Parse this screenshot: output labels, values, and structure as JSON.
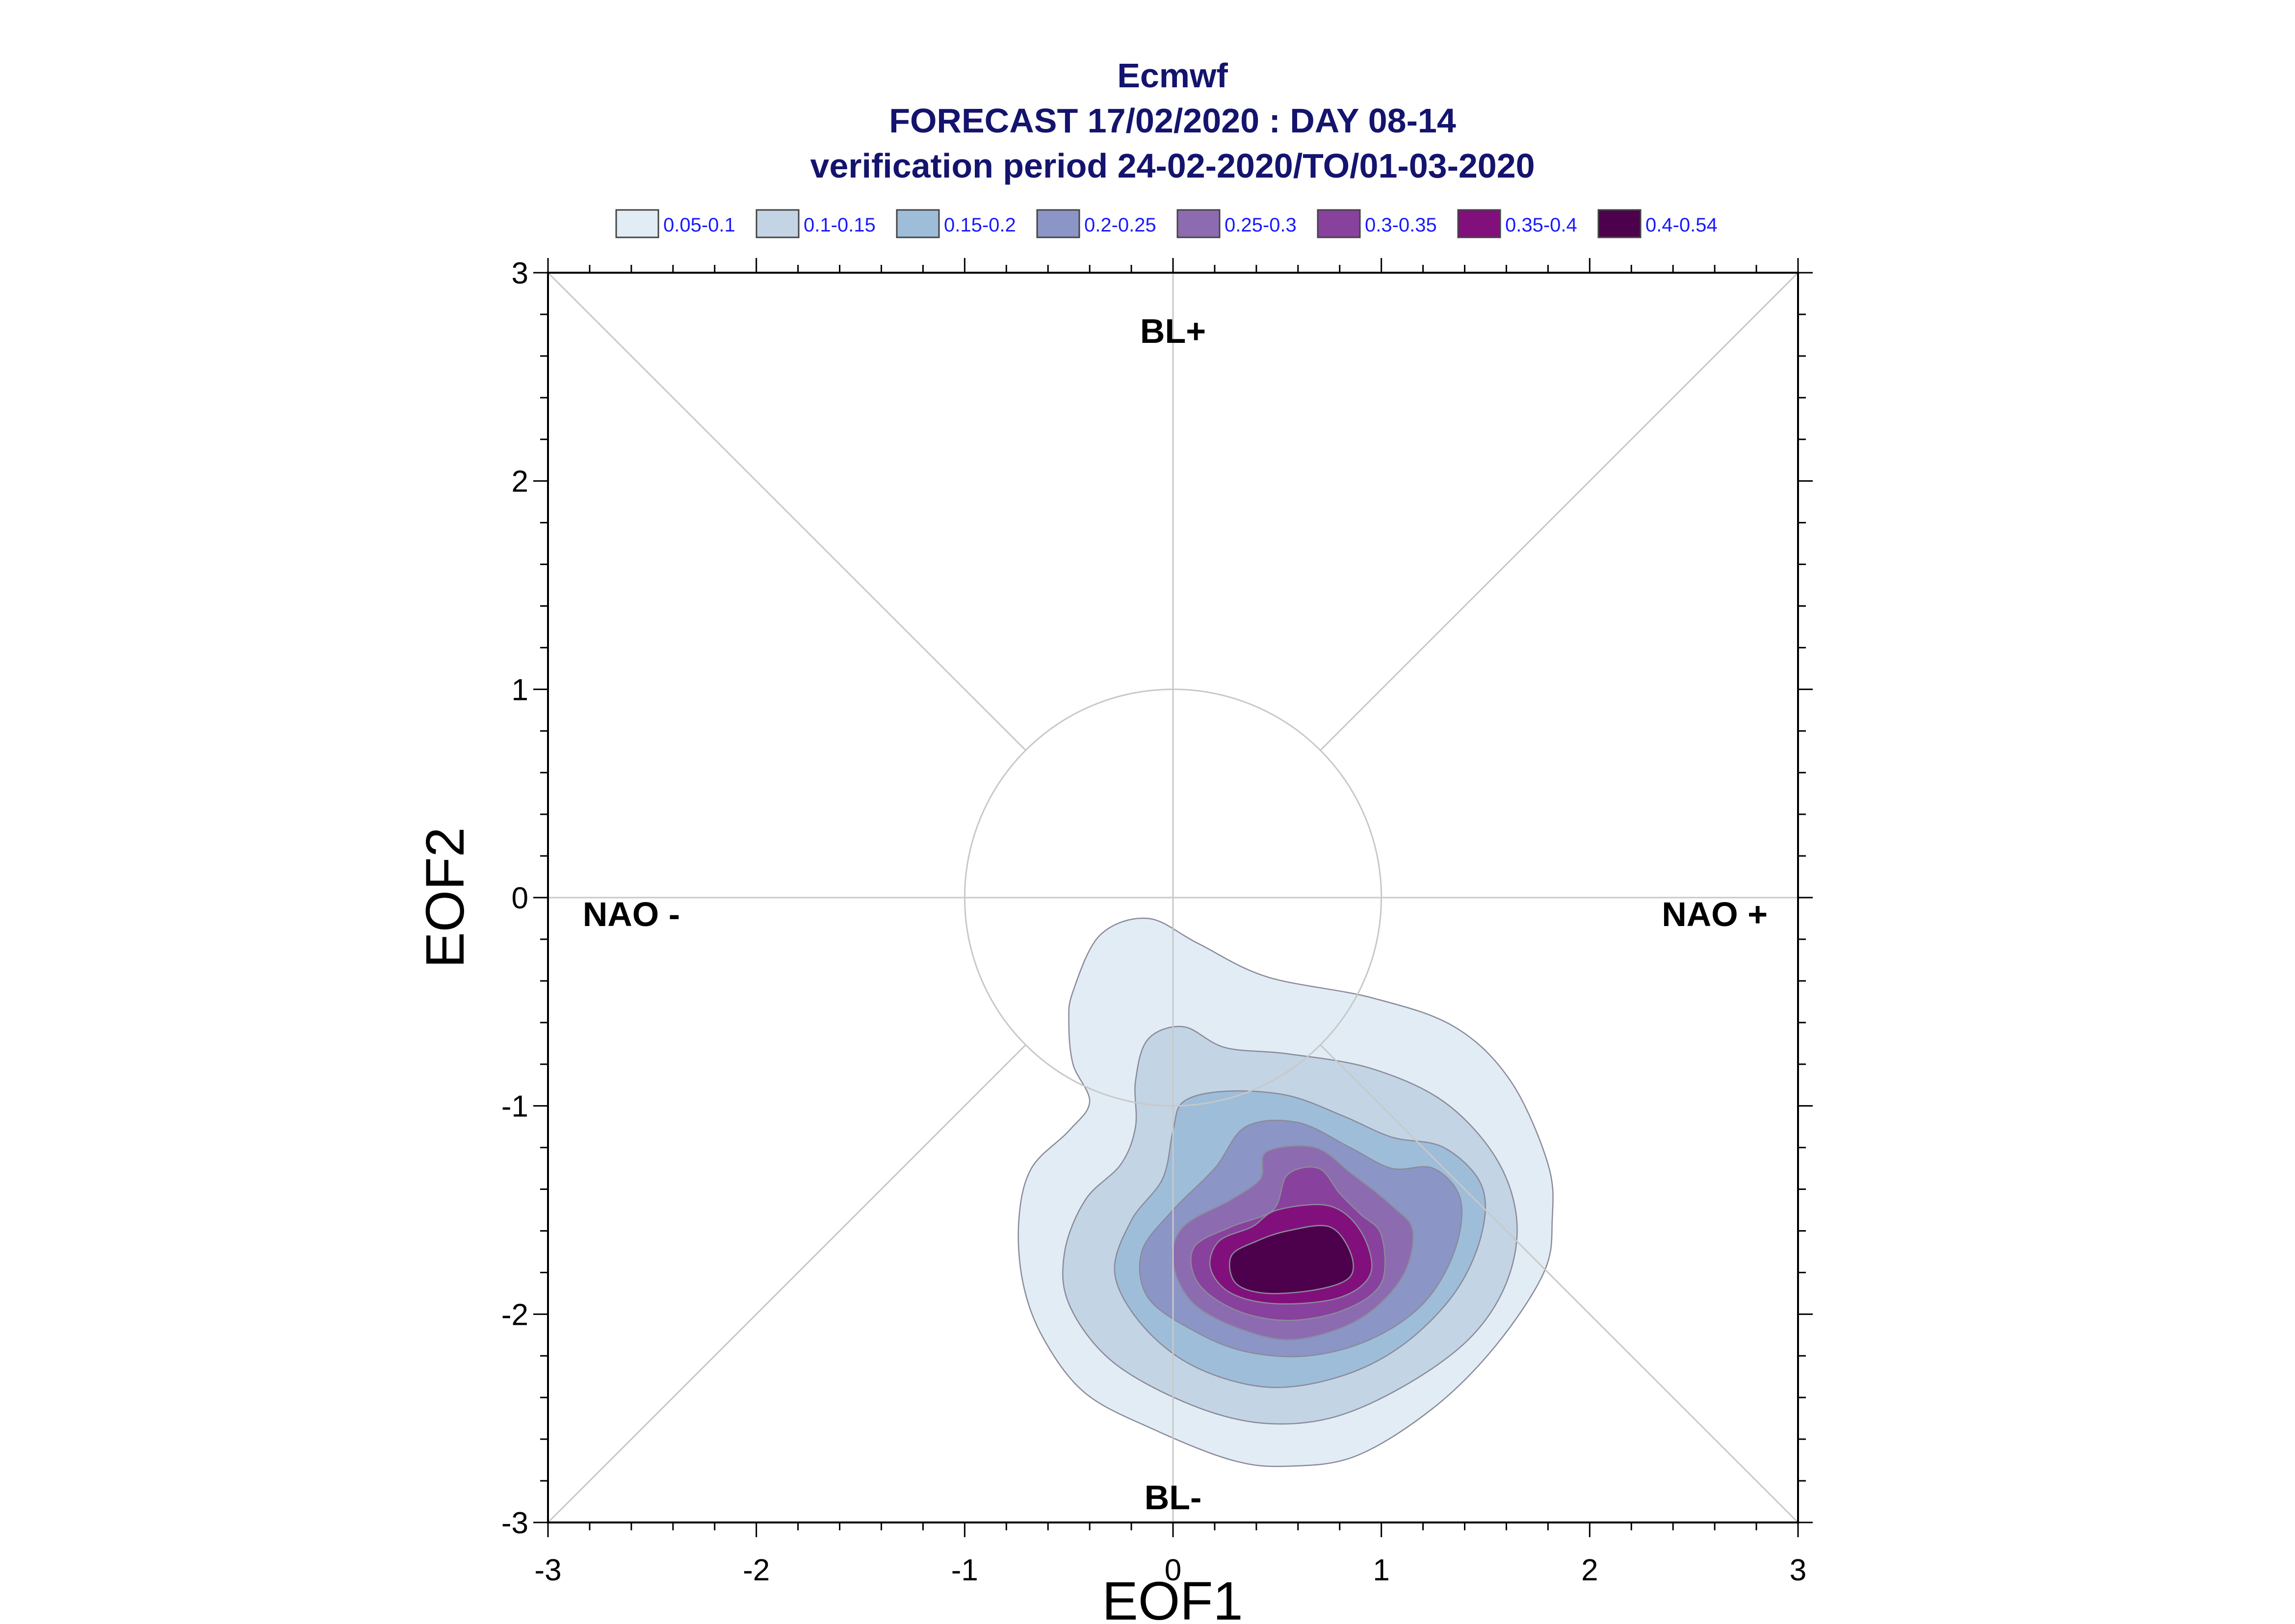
{
  "chart_data": {
    "type": "contour",
    "title": "Ecmwf",
    "subtitle": "FORECAST 17/02/2020 : DAY 08-14",
    "subtitle2": "verification period 24-02-2020/TO/01-03-2020",
    "xlabel": "EOF1",
    "ylabel": "EOF2",
    "xlim": [
      -3,
      3
    ],
    "ylim": [
      -3,
      3
    ],
    "xticks": [
      -3,
      -2,
      -1,
      0,
      1,
      2,
      3
    ],
    "yticks": [
      -3,
      -2,
      -1,
      0,
      1,
      2,
      3
    ],
    "xtick_labels": [
      "-3",
      "-2",
      "-1",
      "0",
      "1",
      "2",
      "3"
    ],
    "ytick_labels": [
      "-3",
      "-2",
      "-1",
      "0",
      "1",
      "2",
      "3"
    ],
    "legend_position": "top",
    "regime_labels": [
      {
        "text": "BL+",
        "x": 0.0,
        "y": 2.72
      },
      {
        "text": "BL-",
        "x": 0.0,
        "y": -2.88
      },
      {
        "text": "NAO -",
        "x": -2.6,
        "y": -0.08
      },
      {
        "text": "NAO +",
        "x": 2.6,
        "y": -0.08
      }
    ],
    "reference_circle_radius": 1.0,
    "levels": [
      {
        "label": "0.05-0.1",
        "color": "#e1ecf4"
      },
      {
        "label": "0.1-0.15",
        "color": "#c3d5e5"
      },
      {
        "label": "0.15-0.2",
        "color": "#9ebdd9"
      },
      {
        "label": "0.2-0.25",
        "color": "#8c96c6"
      },
      {
        "label": "0.25-0.3",
        "color": "#8c6bb1"
      },
      {
        "label": "0.3-0.35",
        "color": "#88419d"
      },
      {
        "label": "0.35-0.4",
        "color": "#810f7c"
      },
      {
        "label": "0.4-0.54",
        "color": "#4d004b"
      }
    ],
    "contours": [
      [
        [
          -0.48,
          -0.45
        ],
        [
          -0.35,
          -0.18
        ],
        [
          -0.12,
          -0.1
        ],
        [
          0.12,
          -0.22
        ],
        [
          0.45,
          -0.38
        ],
        [
          0.95,
          -0.48
        ],
        [
          1.35,
          -0.62
        ],
        [
          1.62,
          -0.88
        ],
        [
          1.8,
          -1.28
        ],
        [
          1.82,
          -1.55
        ],
        [
          1.78,
          -1.8
        ],
        [
          1.55,
          -2.15
        ],
        [
          1.25,
          -2.45
        ],
        [
          0.88,
          -2.68
        ],
        [
          0.55,
          -2.73
        ],
        [
          0.28,
          -2.7
        ],
        [
          -0.1,
          -2.55
        ],
        [
          -0.42,
          -2.38
        ],
        [
          -0.62,
          -2.12
        ],
        [
          -0.72,
          -1.85
        ],
        [
          -0.74,
          -1.55
        ],
        [
          -0.68,
          -1.3
        ],
        [
          -0.5,
          -1.12
        ],
        [
          -0.4,
          -0.98
        ],
        [
          -0.48,
          -0.8
        ],
        [
          -0.5,
          -0.6
        ]
      ],
      [
        [
          -0.12,
          -0.68
        ],
        [
          0.05,
          -0.62
        ],
        [
          0.25,
          -0.72
        ],
        [
          0.55,
          -0.75
        ],
        [
          0.95,
          -0.82
        ],
        [
          1.3,
          -0.98
        ],
        [
          1.55,
          -1.25
        ],
        [
          1.65,
          -1.55
        ],
        [
          1.6,
          -1.85
        ],
        [
          1.42,
          -2.12
        ],
        [
          1.1,
          -2.35
        ],
        [
          0.75,
          -2.5
        ],
        [
          0.4,
          -2.52
        ],
        [
          0.05,
          -2.42
        ],
        [
          -0.3,
          -2.22
        ],
        [
          -0.5,
          -1.95
        ],
        [
          -0.52,
          -1.7
        ],
        [
          -0.42,
          -1.45
        ],
        [
          -0.25,
          -1.28
        ],
        [
          -0.18,
          -1.1
        ],
        [
          -0.18,
          -0.88
        ]
      ],
      [
        [
          0.05,
          -0.98
        ],
        [
          0.25,
          -0.93
        ],
        [
          0.55,
          -0.95
        ],
        [
          0.82,
          -1.05
        ],
        [
          1.05,
          -1.15
        ],
        [
          1.3,
          -1.2
        ],
        [
          1.48,
          -1.38
        ],
        [
          1.48,
          -1.62
        ],
        [
          1.35,
          -1.9
        ],
        [
          1.1,
          -2.15
        ],
        [
          0.8,
          -2.3
        ],
        [
          0.45,
          -2.35
        ],
        [
          0.1,
          -2.25
        ],
        [
          -0.15,
          -2.05
        ],
        [
          -0.28,
          -1.8
        ],
        [
          -0.2,
          -1.55
        ],
        [
          -0.05,
          -1.35
        ],
        [
          0.0,
          -1.12
        ]
      ],
      [
        [
          0.35,
          -1.1
        ],
        [
          0.6,
          -1.08
        ],
        [
          0.85,
          -1.2
        ],
        [
          1.05,
          -1.3
        ],
        [
          1.25,
          -1.3
        ],
        [
          1.38,
          -1.45
        ],
        [
          1.35,
          -1.7
        ],
        [
          1.2,
          -1.95
        ],
        [
          0.95,
          -2.12
        ],
        [
          0.65,
          -2.2
        ],
        [
          0.35,
          -2.18
        ],
        [
          0.1,
          -2.08
        ],
        [
          -0.12,
          -1.92
        ],
        [
          -0.15,
          -1.7
        ],
        [
          0.0,
          -1.5
        ],
        [
          0.2,
          -1.3
        ]
      ],
      [
        [
          0.45,
          -1.22
        ],
        [
          0.68,
          -1.2
        ],
        [
          0.85,
          -1.32
        ],
        [
          1.05,
          -1.48
        ],
        [
          1.15,
          -1.6
        ],
        [
          1.1,
          -1.82
        ],
        [
          0.9,
          -2.02
        ],
        [
          0.6,
          -2.12
        ],
        [
          0.35,
          -2.08
        ],
        [
          0.1,
          -1.95
        ],
        [
          0.0,
          -1.75
        ],
        [
          0.05,
          -1.58
        ],
        [
          0.28,
          -1.45
        ],
        [
          0.42,
          -1.35
        ]
      ],
      [
        [
          0.55,
          -1.33
        ],
        [
          0.7,
          -1.3
        ],
        [
          0.8,
          -1.42
        ],
        [
          0.9,
          -1.52
        ],
        [
          1.0,
          -1.62
        ],
        [
          1.0,
          -1.85
        ],
        [
          0.82,
          -1.98
        ],
        [
          0.55,
          -2.03
        ],
        [
          0.3,
          -1.98
        ],
        [
          0.12,
          -1.85
        ],
        [
          0.1,
          -1.68
        ],
        [
          0.28,
          -1.58
        ],
        [
          0.48,
          -1.5
        ]
      ],
      [
        [
          0.5,
          -1.5
        ],
        [
          0.75,
          -1.48
        ],
        [
          0.9,
          -1.6
        ],
        [
          0.95,
          -1.8
        ],
        [
          0.8,
          -1.92
        ],
        [
          0.5,
          -1.95
        ],
        [
          0.28,
          -1.9
        ],
        [
          0.18,
          -1.78
        ],
        [
          0.22,
          -1.65
        ],
        [
          0.38,
          -1.58
        ]
      ],
      [
        [
          0.55,
          -1.6
        ],
        [
          0.75,
          -1.58
        ],
        [
          0.85,
          -1.7
        ],
        [
          0.85,
          -1.82
        ],
        [
          0.7,
          -1.88
        ],
        [
          0.45,
          -1.9
        ],
        [
          0.3,
          -1.85
        ],
        [
          0.28,
          -1.72
        ],
        [
          0.4,
          -1.65
        ]
      ]
    ]
  }
}
